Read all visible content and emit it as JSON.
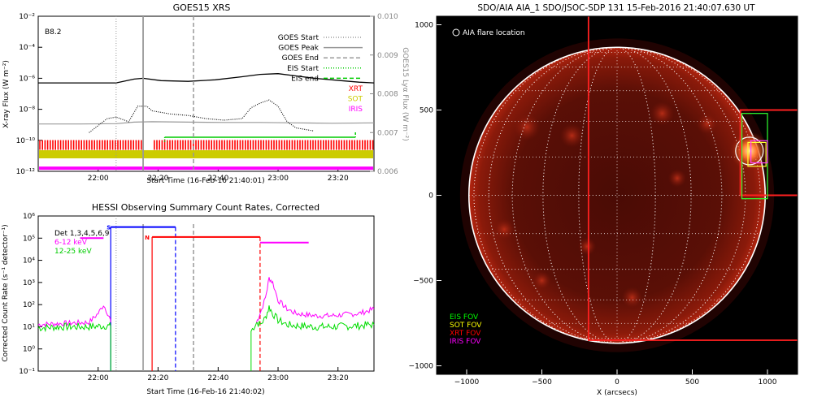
{
  "chart_data": [
    {
      "id": "goes",
      "type": "line",
      "title": "GOES15 XRS",
      "xlabel": "Start Time (16-Feb-16 21:40:01)",
      "ylabel": "X-ray Flux (W m⁻²)",
      "y2label": "GOES15 Lyα Flux (W m⁻²)",
      "xlim_hours": [
        21.667,
        23.533
      ],
      "ylim_log": [
        -12,
        -2
      ],
      "y2lim": [
        0.006,
        0.01
      ],
      "yticks": [
        {
          "v": -2,
          "label": "10⁻²"
        },
        {
          "v": -4,
          "label": "10⁻⁴"
        },
        {
          "v": -6,
          "label": "10⁻⁶"
        },
        {
          "v": -8,
          "label": "10⁻⁸"
        },
        {
          "v": -10,
          "label": "10⁻¹⁰"
        },
        {
          "v": -12,
          "label": "10⁻¹²"
        }
      ],
      "y2ticks": [
        "0.010",
        "0.009",
        "0.008",
        "0.007",
        "0.006"
      ],
      "xticks": [
        {
          "v": 22.0,
          "label": "22:00"
        },
        {
          "v": 22.333,
          "label": "22:20"
        },
        {
          "v": 22.667,
          "label": "22:40"
        },
        {
          "v": 23.0,
          "label": "23:00"
        },
        {
          "v": 23.333,
          "label": "23:20"
        }
      ],
      "class_label": "B8.2",
      "goes_start": 22.1,
      "goes_peak": 22.25,
      "goes_end": 22.53,
      "eis_start": 22.37,
      "eis_end": 23.43,
      "eis_level": -9.8,
      "xray_long": {
        "x": [
          21.667,
          21.8,
          21.95,
          22.1,
          22.2,
          22.25,
          22.35,
          22.5,
          22.65,
          22.8,
          22.9,
          23.0,
          23.1,
          23.2,
          23.35,
          23.45,
          23.533
        ],
        "y": [
          -6.3,
          -6.3,
          -6.3,
          -6.3,
          -6.05,
          -6.0,
          -6.15,
          -6.2,
          -6.1,
          -5.9,
          -5.75,
          -5.7,
          -5.85,
          -6.0,
          -6.15,
          -6.25,
          -6.3
        ]
      },
      "xray_short": {
        "x": [
          21.95,
          22.05,
          22.1,
          22.17,
          22.22,
          22.27,
          22.3,
          22.4,
          22.5,
          22.6,
          22.7,
          22.8,
          22.85,
          22.9,
          22.95,
          23.0,
          23.05,
          23.1,
          23.2
        ],
        "y": [
          -9.5,
          -8.6,
          -8.5,
          -8.8,
          -7.8,
          -7.8,
          -8.1,
          -8.3,
          -8.4,
          -8.6,
          -8.7,
          -8.6,
          -7.9,
          -7.6,
          -7.4,
          -7.8,
          -8.8,
          -9.2,
          -9.4
        ]
      },
      "lya": {
        "x": [
          21.667,
          21.9,
          22.1,
          22.2,
          22.3,
          22.5,
          22.7,
          22.9,
          23.1,
          23.3,
          23.533
        ],
        "y": [
          0.00722,
          0.00722,
          0.00723,
          0.00727,
          0.00728,
          0.00727,
          0.00726,
          0.00726,
          0.00725,
          0.00724,
          0.00725
        ]
      },
      "xrt_band": {
        "y": -10.3,
        "gaps": [
          [
            22.25,
            22.3
          ]
        ]
      },
      "sot_band": {
        "y": -10.9
      },
      "iris_band": {
        "y": -11.8
      },
      "legend": [
        {
          "label": "GOES Start",
          "style": "dotted"
        },
        {
          "label": "GOES Peak",
          "style": "solid"
        },
        {
          "label": "GOES End",
          "style": "dashed"
        },
        {
          "label": "EIS Start",
          "style": "dotted"
        },
        {
          "label": "EIS end",
          "style": "dashed"
        },
        {
          "label": "XRT",
          "style": "text"
        },
        {
          "label": "SOT",
          "style": "text"
        },
        {
          "label": "IRIS",
          "style": "text"
        }
      ]
    },
    {
      "id": "hessi",
      "type": "line",
      "title": "HESSI Observing Summary Count Rates, Corrected",
      "xlabel": "Start Time (16-Feb-16 21:40:02)",
      "ylabel": "Corrected Count Rate (s⁻¹ detector⁻¹)",
      "xlim_hours": [
        21.667,
        23.533
      ],
      "ylim_log": [
        -1,
        6
      ],
      "yticks": [
        {
          "v": -1,
          "label": "10⁻¹"
        },
        {
          "v": 0,
          "label": "10⁰"
        },
        {
          "v": 1,
          "label": "10¹"
        },
        {
          "v": 2,
          "label": "10²"
        },
        {
          "v": 3,
          "label": "10³"
        },
        {
          "v": 4,
          "label": "10⁴"
        },
        {
          "v": 5,
          "label": "10⁵"
        },
        {
          "v": 6,
          "label": "10⁶"
        }
      ],
      "xticks": [
        {
          "v": 22.0,
          "label": "22:00"
        },
        {
          "v": 22.333,
          "label": "22:20"
        },
        {
          "v": 22.667,
          "label": "22:40"
        },
        {
          "v": 23.0,
          "label": "23:00"
        },
        {
          "v": 23.333,
          "label": "23:20"
        }
      ],
      "legend": [
        {
          "label": "Det 1,3,4,5,6,9"
        },
        {
          "label": "6-12 keV"
        },
        {
          "label": "12-25 keV"
        }
      ],
      "flag_s": "S",
      "flag_n": "N",
      "lines": {
        "goes_start": 22.1,
        "goes_peak": 22.25,
        "goes_end": 22.53,
        "blue_start": 22.07,
        "blue_end": 22.43,
        "red_start": 22.3,
        "red_dash1": 22.3,
        "red_dash2": 22.9,
        "saa_level": 5.5,
        "night_level": 5.05,
        "magenta_level": 5.0,
        "blue_dash": 22.43
      },
      "ch_low": {
        "x": [
          21.667,
          21.8,
          21.95,
          22.0,
          22.03,
          22.06,
          22.07
        ],
        "y": [
          1.1,
          1.15,
          1.2,
          1.6,
          2.0,
          1.5,
          1.2
        ]
      },
      "ch_low2": {
        "x": [
          22.88,
          22.9,
          22.93,
          22.95,
          22.97,
          23.0,
          23.05,
          23.1,
          23.2,
          23.3,
          23.45,
          23.533
        ],
        "y": [
          1.2,
          1.6,
          2.3,
          3.2,
          3.0,
          2.2,
          1.8,
          1.6,
          1.5,
          1.5,
          1.6,
          1.8
        ]
      },
      "ch_high": {
        "x": [
          21.667,
          21.8,
          21.95,
          22.05,
          22.07
        ],
        "y": [
          0.95,
          1.0,
          1.0,
          1.05,
          1.0
        ]
      },
      "ch_high2": {
        "x": [
          22.85,
          22.88,
          22.9,
          22.93,
          22.95,
          22.97,
          23.0,
          23.05,
          23.1,
          23.2,
          23.3,
          23.45,
          23.533
        ],
        "y": [
          0.8,
          1.2,
          1.1,
          1.4,
          1.9,
          1.6,
          1.3,
          1.1,
          1.05,
          1.0,
          1.0,
          1.05,
          1.1
        ]
      }
    },
    {
      "id": "aia",
      "type": "scatter",
      "title": "SDO/AIA AIA_1 SDO/JSOC-SDP 131 15-Feb-2016 21:40:07.630 UT",
      "xlabel": "X (arcsecs)",
      "xlim": [
        -1200,
        1200
      ],
      "ylim": [
        -1050,
        1050
      ],
      "xticks": [
        {
          "v": -1000,
          "label": "−1000"
        },
        {
          "v": -500,
          "label": "−500"
        },
        {
          "v": 0,
          "label": "0"
        },
        {
          "v": 500,
          "label": "500"
        },
        {
          "v": 1000,
          "label": "1000"
        }
      ],
      "yticks": [
        {
          "v": 1000,
          "label": "1000"
        },
        {
          "v": 500,
          "label": "500"
        },
        {
          "v": 0,
          "label": "0"
        },
        {
          "v": -500,
          "label": "−500"
        },
        {
          "v": -1000,
          "label": "−1000"
        }
      ],
      "flare_label": "AIA flare location",
      "solar_radius": 985,
      "flare": {
        "x": 880,
        "y": 260
      },
      "fov_labels": [
        {
          "label": "EIS FOV",
          "color": "#00ff00"
        },
        {
          "label": "SOT FOV",
          "color": "#ffff00"
        },
        {
          "label": "XRT FOV",
          "color": "#ff0000"
        },
        {
          "label": "IRIS FOV",
          "color": "#ff00ff"
        }
      ],
      "xrt_fov": {
        "x0": -190,
        "x1": 1210,
        "y0": -850,
        "y1": 1200
      },
      "xrt_fov2": {
        "x0": 820,
        "x1": 1210,
        "y0": 0,
        "y1": 500
      },
      "eis_fov": {
        "x0": 830,
        "x1": 1000,
        "y0": -20,
        "y1": 480
      },
      "sot_fov": {
        "x0": 870,
        "x1": 990,
        "y0": 170,
        "y1": 310
      },
      "iris_fov": {
        "x0": 890,
        "x1": 1000,
        "y0": 190,
        "y1": 320
      }
    }
  ],
  "colors": {
    "xrt": "#ff0000",
    "sot": "#cccc00",
    "iris": "#ff00ff",
    "eis": "#00cc00",
    "hessi_low": "#ff00ff",
    "hessi_high": "#00dd00",
    "saa": "#0000ff",
    "night": "#ff0000",
    "lya": "#999999"
  }
}
